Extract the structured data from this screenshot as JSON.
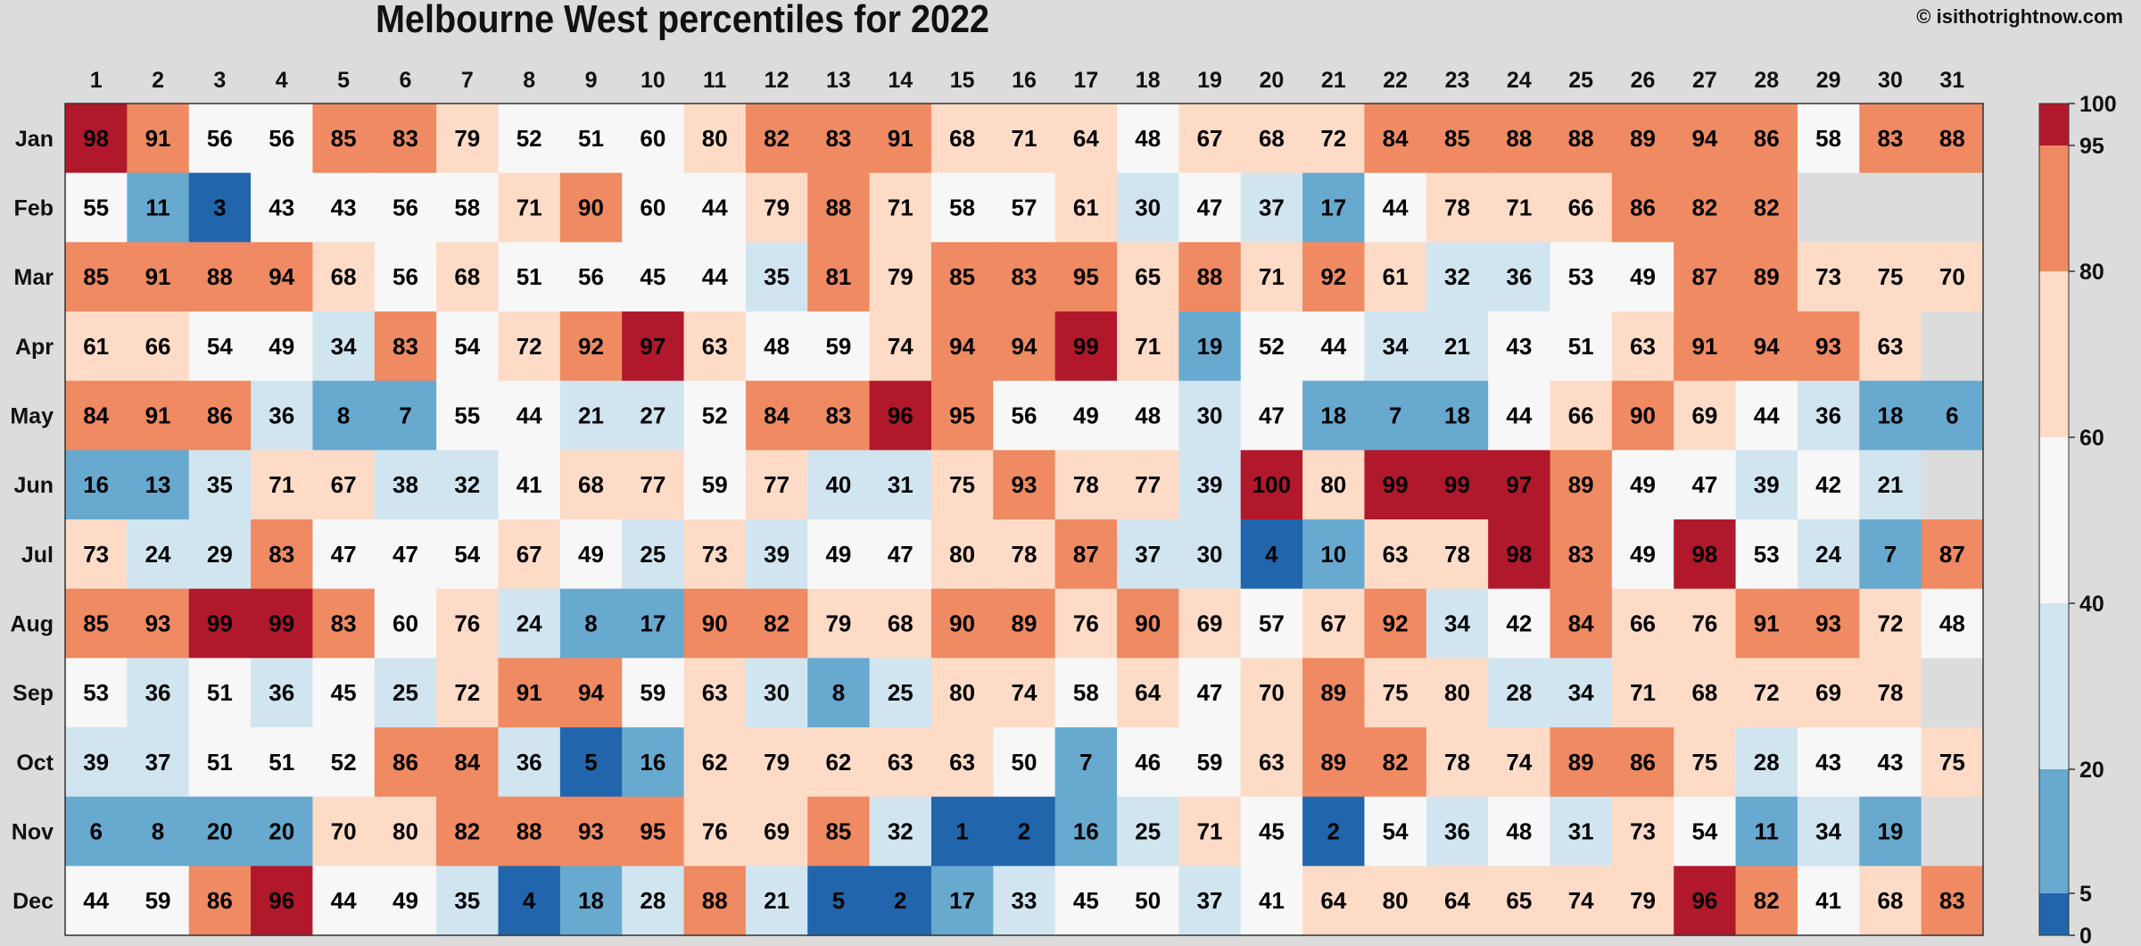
{
  "header": {
    "title": "Melbourne West percentiles for 2022",
    "copyright": "© isithotrightnow.com"
  },
  "chart_data": {
    "type": "heatmap",
    "title": "Melbourne West percentiles for 2022",
    "x": [
      "1",
      "2",
      "3",
      "4",
      "5",
      "6",
      "7",
      "8",
      "9",
      "10",
      "11",
      "12",
      "13",
      "14",
      "15",
      "16",
      "17",
      "18",
      "19",
      "20",
      "21",
      "22",
      "23",
      "24",
      "25",
      "26",
      "27",
      "28",
      "29",
      "30",
      "31"
    ],
    "y": [
      "Jan",
      "Feb",
      "Mar",
      "Apr",
      "May",
      "Jun",
      "Jul",
      "Aug",
      "Sep",
      "Oct",
      "Nov",
      "Dec"
    ],
    "values": [
      [
        98,
        91,
        56,
        56,
        85,
        83,
        79,
        52,
        51,
        60,
        80,
        82,
        83,
        91,
        68,
        71,
        64,
        48,
        67,
        68,
        72,
        84,
        85,
        88,
        88,
        89,
        94,
        86,
        58,
        83,
        88
      ],
      [
        55,
        11,
        3,
        43,
        43,
        56,
        58,
        71,
        90,
        60,
        44,
        79,
        88,
        71,
        58,
        57,
        61,
        30,
        47,
        37,
        17,
        44,
        78,
        71,
        66,
        86,
        82,
        82,
        null,
        null,
        null
      ],
      [
        85,
        91,
        88,
        94,
        68,
        56,
        68,
        51,
        56,
        45,
        44,
        35,
        81,
        79,
        85,
        83,
        95,
        65,
        88,
        71,
        92,
        61,
        32,
        36,
        53,
        49,
        87,
        89,
        73,
        75,
        70
      ],
      [
        61,
        66,
        54,
        49,
        34,
        83,
        54,
        72,
        92,
        97,
        63,
        48,
        59,
        74,
        94,
        94,
        99,
        71,
        19,
        52,
        44,
        34,
        21,
        43,
        51,
        63,
        91,
        94,
        93,
        63,
        null
      ],
      [
        84,
        91,
        86,
        36,
        8,
        7,
        55,
        44,
        21,
        27,
        52,
        84,
        83,
        96,
        95,
        56,
        49,
        48,
        30,
        47,
        18,
        7,
        18,
        44,
        66,
        90,
        69,
        44,
        36,
        18,
        6
      ],
      [
        16,
        13,
        35,
        71,
        67,
        38,
        32,
        41,
        68,
        77,
        59,
        77,
        40,
        31,
        75,
        93,
        78,
        77,
        39,
        100,
        80,
        99,
        99,
        97,
        89,
        49,
        47,
        39,
        42,
        21,
        null
      ],
      [
        73,
        24,
        29,
        83,
        47,
        47,
        54,
        67,
        49,
        25,
        73,
        39,
        49,
        47,
        80,
        78,
        87,
        37,
        30,
        4,
        10,
        63,
        78,
        98,
        83,
        49,
        98,
        53,
        24,
        7,
        87
      ],
      [
        85,
        93,
        99,
        99,
        83,
        60,
        76,
        24,
        8,
        17,
        90,
        82,
        79,
        68,
        90,
        89,
        76,
        90,
        69,
        57,
        67,
        92,
        34,
        42,
        84,
        66,
        76,
        91,
        93,
        72,
        48
      ],
      [
        53,
        36,
        51,
        36,
        45,
        25,
        72,
        91,
        94,
        59,
        63,
        30,
        8,
        25,
        80,
        74,
        58,
        64,
        47,
        70,
        89,
        75,
        80,
        28,
        34,
        71,
        68,
        72,
        69,
        78,
        null
      ],
      [
        39,
        37,
        51,
        51,
        52,
        86,
        84,
        36,
        5,
        16,
        62,
        79,
        62,
        63,
        63,
        50,
        7,
        46,
        59,
        63,
        89,
        82,
        78,
        74,
        89,
        86,
        75,
        28,
        43,
        43,
        75
      ],
      [
        6,
        8,
        20,
        20,
        70,
        80,
        82,
        88,
        93,
        95,
        76,
        69,
        85,
        32,
        1,
        2,
        16,
        25,
        71,
        45,
        2,
        54,
        36,
        48,
        31,
        73,
        54,
        11,
        34,
        19,
        null
      ],
      [
        44,
        59,
        86,
        96,
        44,
        49,
        35,
        4,
        18,
        28,
        88,
        21,
        5,
        2,
        17,
        33,
        45,
        50,
        37,
        41,
        64,
        80,
        64,
        65,
        74,
        79,
        96,
        82,
        41,
        68,
        83
      ]
    ],
    "colorbar": {
      "ticks": [
        "0",
        "5",
        "20",
        "40",
        "60",
        "80",
        "95",
        "100"
      ],
      "bins": [
        {
          "min": 0,
          "max": 5,
          "color": "#2166ac"
        },
        {
          "min": 5,
          "max": 20,
          "color": "#67a9cf"
        },
        {
          "min": 20,
          "max": 40,
          "color": "#d1e5f0"
        },
        {
          "min": 40,
          "max": 60,
          "color": "#f7f7f7"
        },
        {
          "min": 60,
          "max": 80,
          "color": "#fddbc7"
        },
        {
          "min": 80,
          "max": 95,
          "color": "#ef8a62"
        },
        {
          "min": 95,
          "max": 100,
          "color": "#b2182b"
        }
      ]
    },
    "missing_color": "#dcdcdc",
    "grid": false,
    "legend": "right colorbar"
  }
}
